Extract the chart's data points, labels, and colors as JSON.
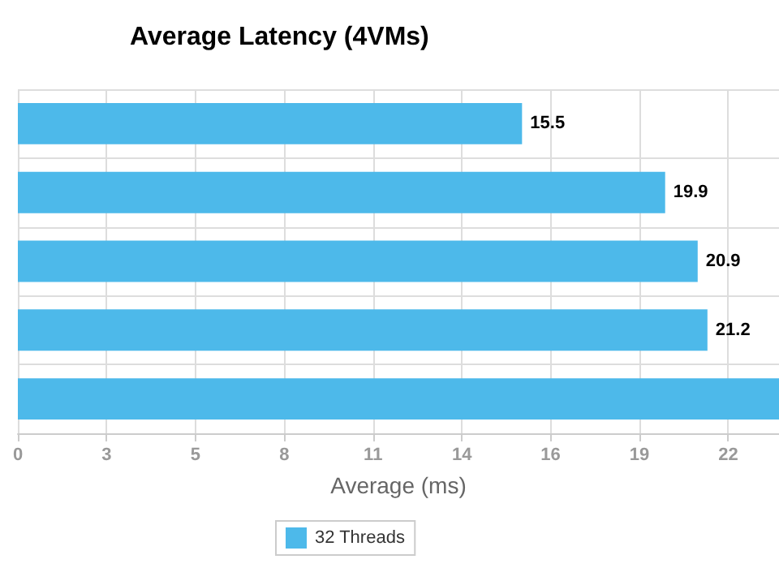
{
  "chart_data": {
    "type": "bar",
    "orientation": "horizontal",
    "title": "Average Latency (4VMs)",
    "xlabel": "Average (ms)",
    "categories": [
      null,
      null,
      null,
      null,
      null
    ],
    "series": [
      {
        "name": "32 Threads",
        "color": "#4db9ea",
        "values": [
          15.5,
          19.9,
          20.9,
          21.2,
          23.4
        ],
        "value_labels": [
          "15.5",
          "19.9",
          "20.9",
          "21.2",
          null
        ]
      }
    ],
    "xlim": [
      0,
      23.4
    ],
    "xticks": [
      0,
      {
        "value": 2.73,
        "label": "3"
      },
      {
        "value": 5.46,
        "label": "5"
      },
      {
        "value": 8.19,
        "label": "8"
      },
      {
        "value": 10.92,
        "label": "11"
      },
      {
        "value": 13.65,
        "label": "14"
      },
      {
        "value": 16.38,
        "label": "16"
      },
      {
        "value": 19.11,
        "label": "19"
      },
      {
        "value": 21.84,
        "label": "22"
      }
    ],
    "grid": true,
    "legend": "bottom"
  }
}
